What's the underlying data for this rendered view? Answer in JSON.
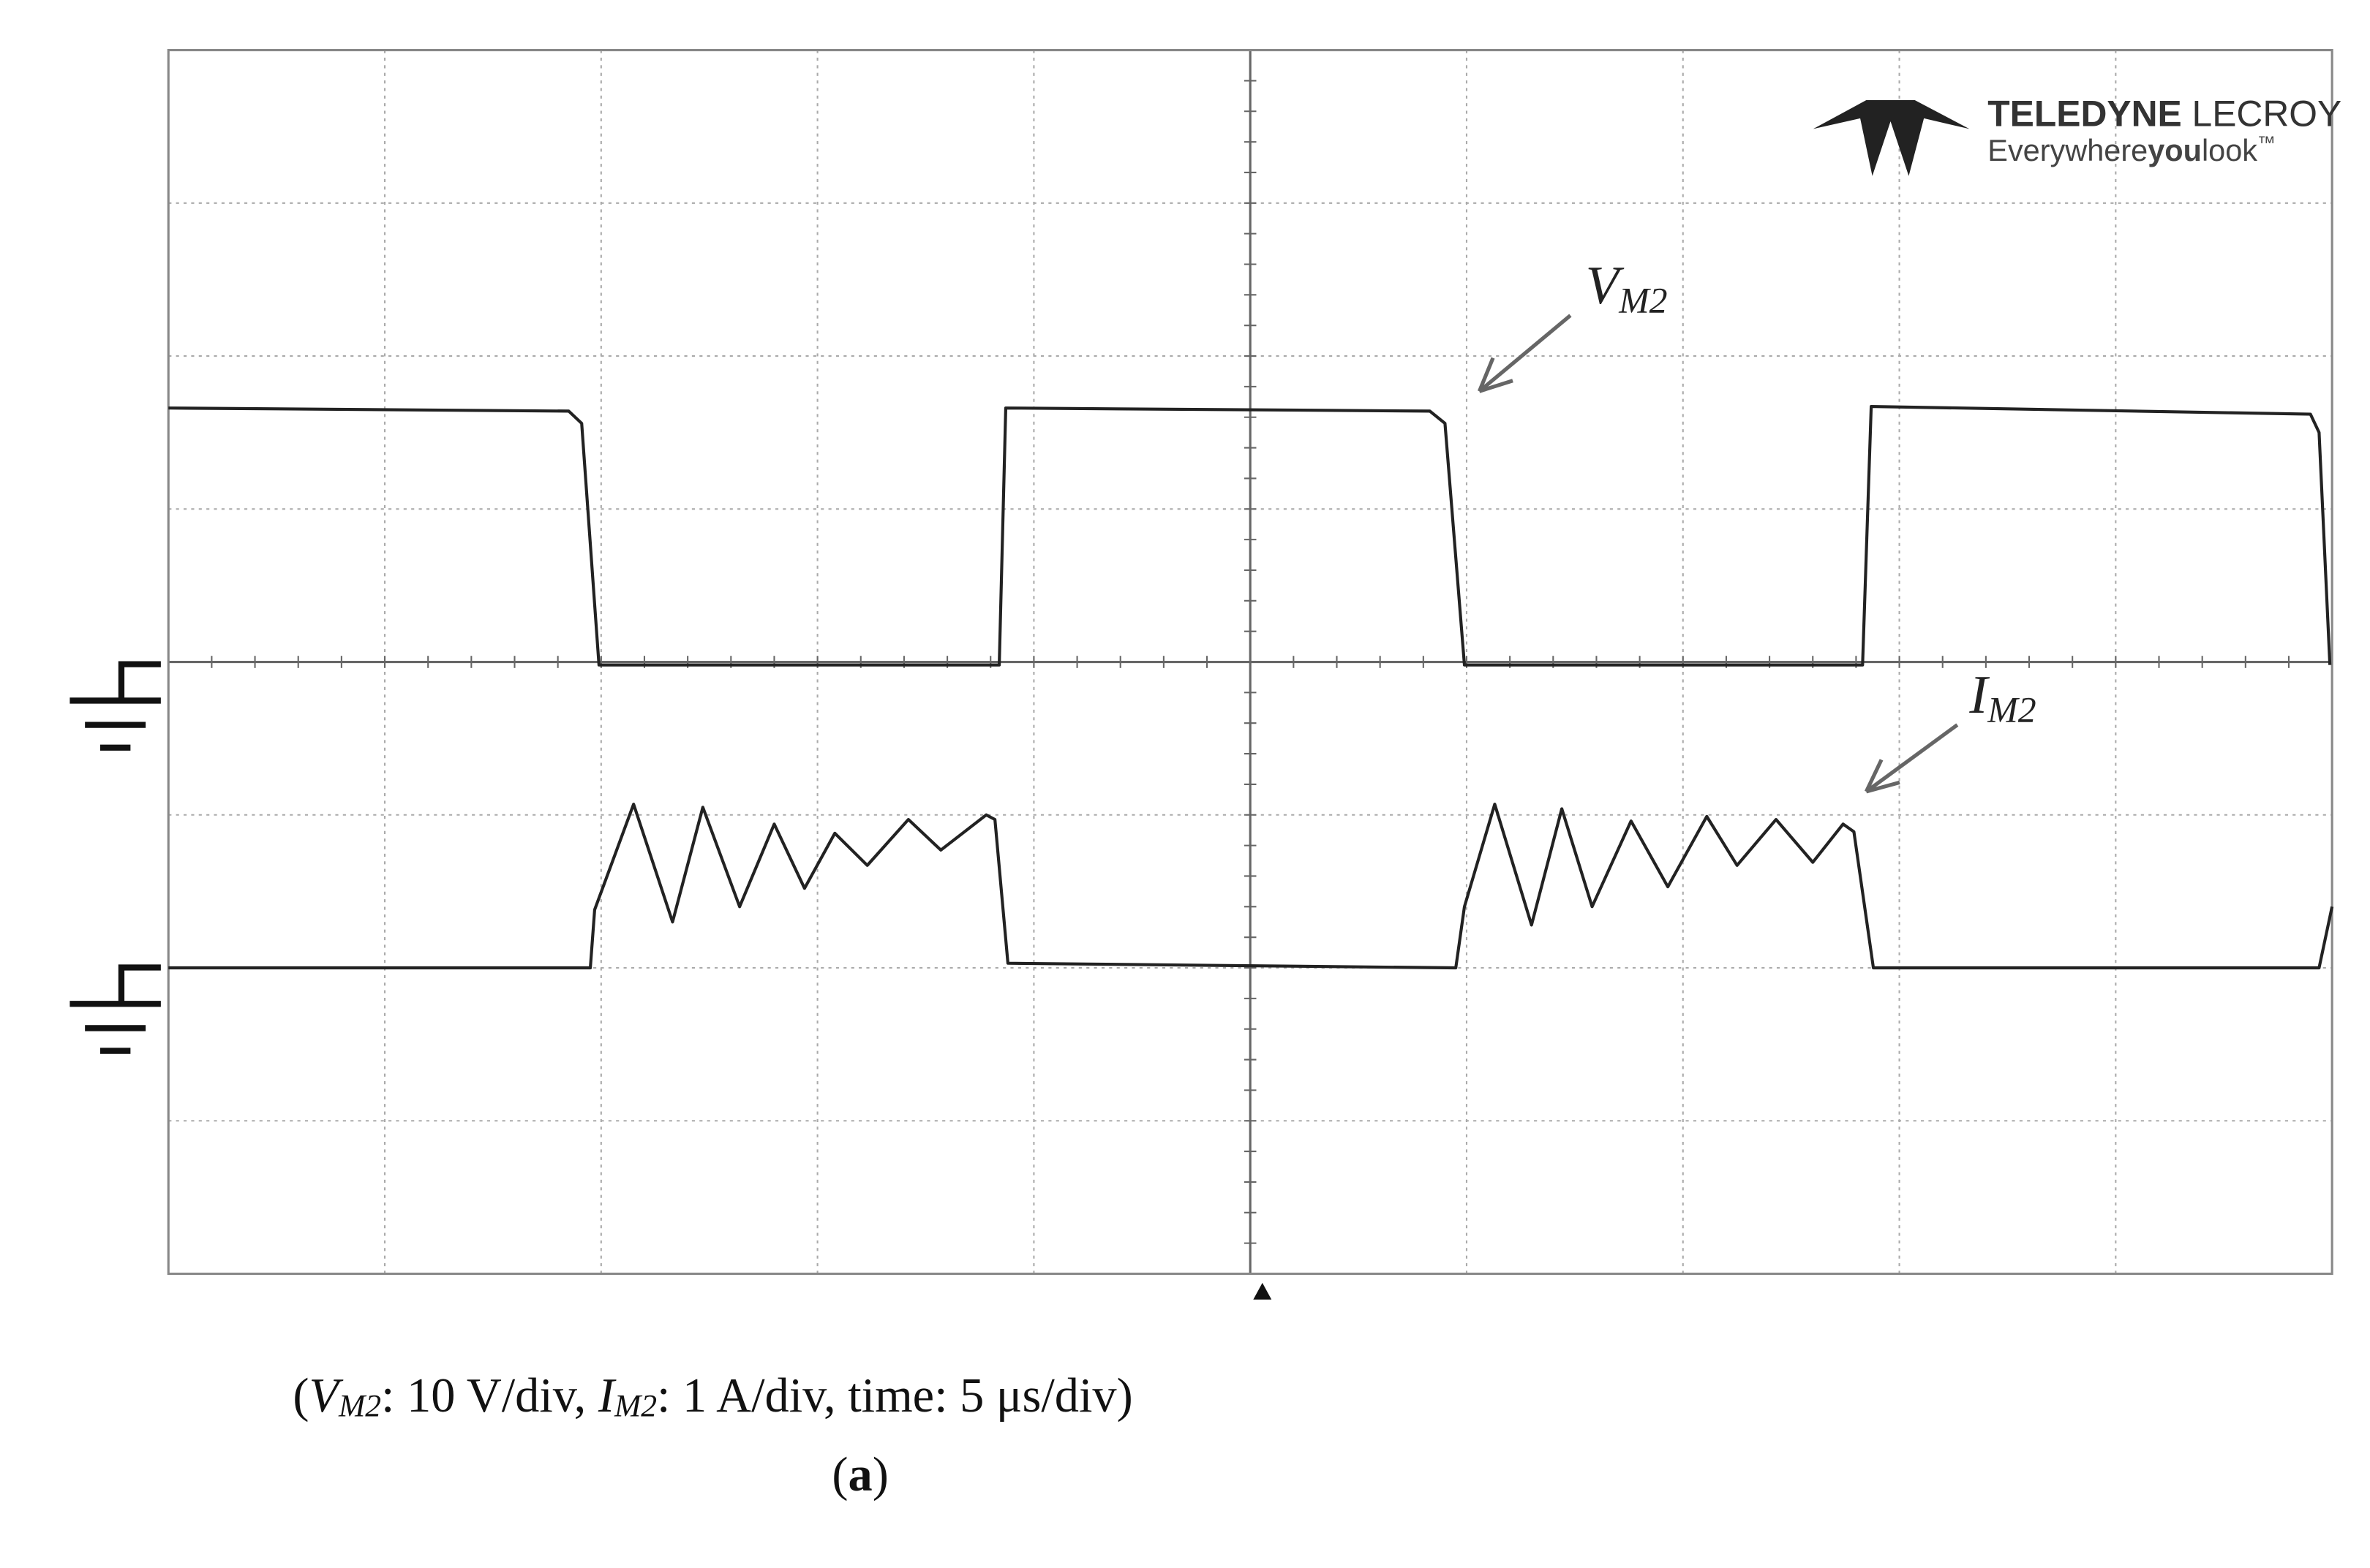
{
  "chart_data": {
    "type": "line",
    "xlim": [
      0,
      10
    ],
    "ylim": [
      0,
      8
    ],
    "grid": true,
    "series": [
      {
        "color": "#222222",
        "x": [
          0,
          1.85,
          1.91,
          1.99,
          3.84,
          3.87,
          5.83,
          5.9,
          5.99,
          7.83,
          7.87,
          9.9,
          9.94,
          9.99
        ],
        "values": [
          5.66,
          5.64,
          5.56,
          3.98,
          3.98,
          5.66,
          5.64,
          5.56,
          3.98,
          3.98,
          5.67,
          5.62,
          5.5,
          3.98
        ]
      },
      {
        "color": "#222222",
        "x": [
          0,
          1.95,
          1.97,
          2.15,
          2.33,
          2.47,
          2.64,
          2.8,
          2.94,
          3.08,
          3.23,
          3.42,
          3.57,
          3.78,
          3.82,
          3.88,
          5.95,
          5.99,
          6.13,
          6.3,
          6.44,
          6.58,
          6.76,
          6.93,
          7.11,
          7.25,
          7.43,
          7.6,
          7.74,
          7.79,
          7.88,
          9.94,
          10.0
        ],
        "values": [
          2.0,
          2.0,
          2.38,
          3.07,
          2.3,
          3.05,
          2.4,
          2.94,
          2.52,
          2.88,
          2.67,
          2.97,
          2.77,
          3.0,
          2.97,
          2.03,
          2.0,
          2.4,
          3.07,
          2.28,
          3.04,
          2.4,
          2.96,
          2.53,
          2.99,
          2.67,
          2.97,
          2.69,
          2.94,
          2.89,
          2.0,
          2.0,
          2.4
        ]
      }
    ],
    "annotations": [
      {
        "text": "V",
        "sub": "M2"
      },
      {
        "text": "I",
        "sub": "M2"
      }
    ],
    "caption": [
      "(",
      "V",
      "M2",
      ": 10 V/div, ",
      "I",
      "M2",
      ": 1 A/div, time: 5 μs/div)"
    ],
    "label": [
      "(",
      "a",
      ")"
    ]
  },
  "logo": {
    "brand_bold": "TELEDYNE",
    "brand": " LECROY",
    "tag_1": "Everywhere",
    "tag_2": "you",
    "tag_3": "look",
    "tm": "™"
  }
}
